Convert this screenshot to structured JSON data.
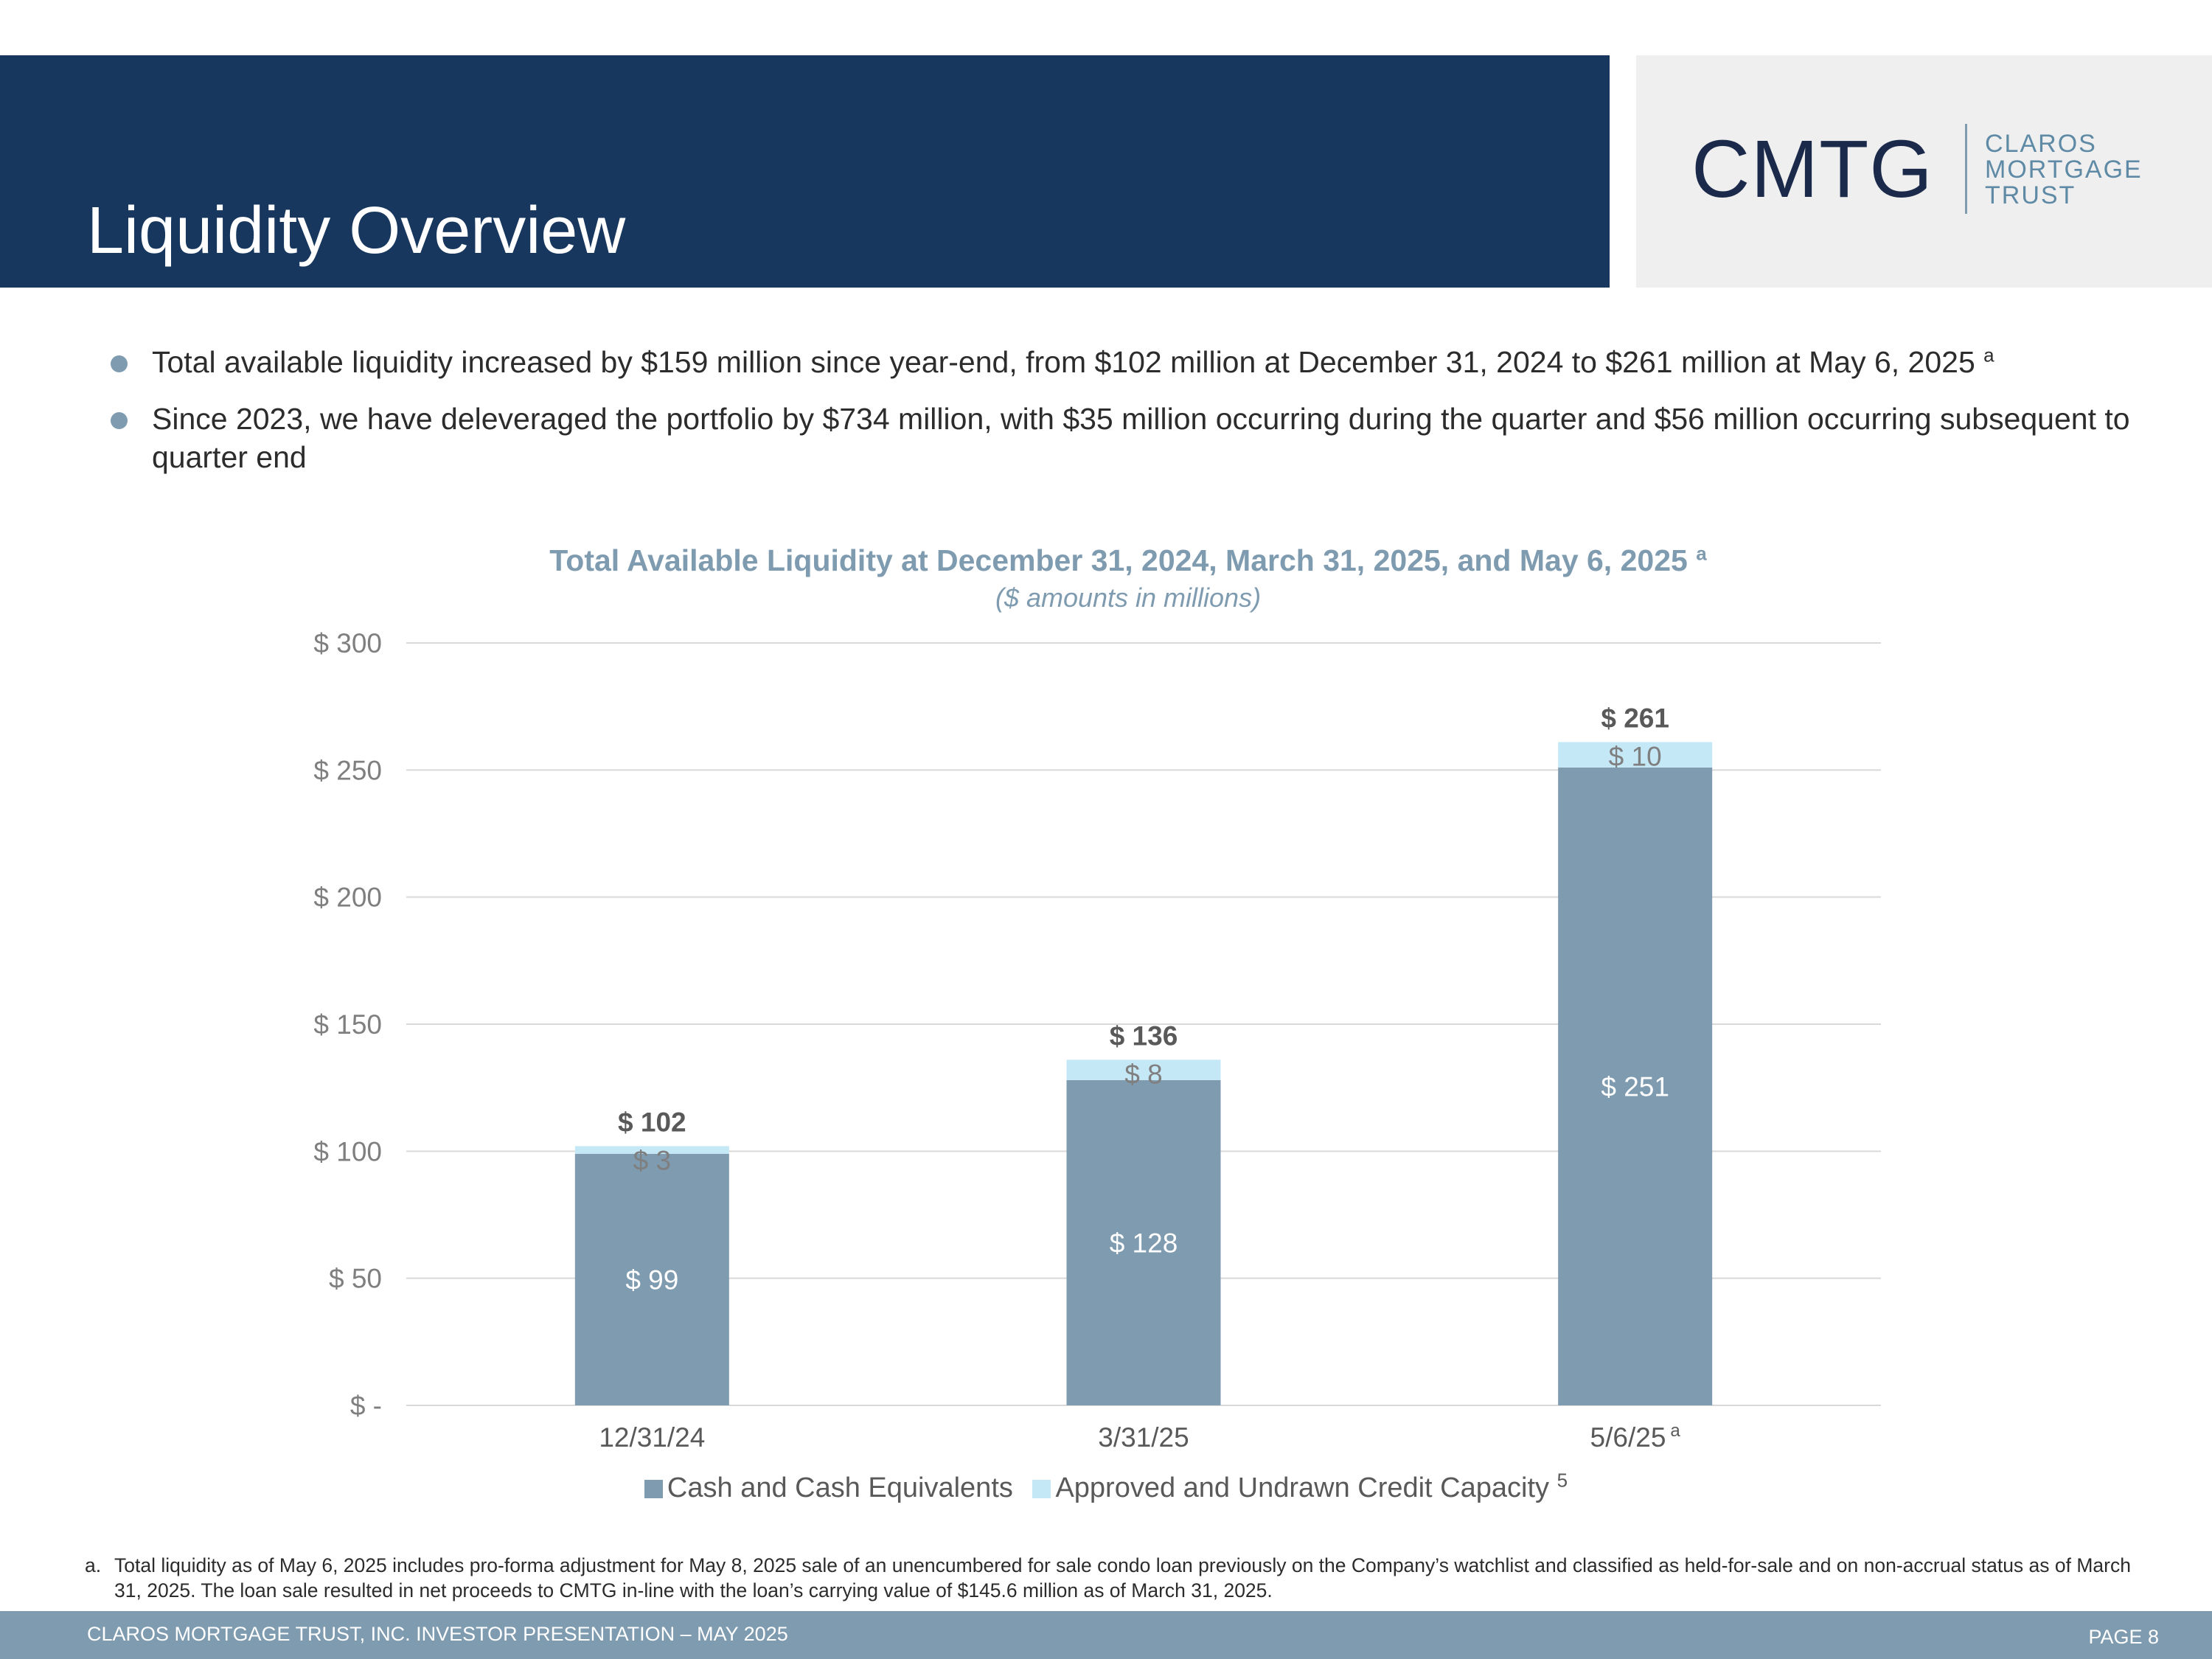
{
  "header": {
    "title": "Liquidity Overview"
  },
  "logo": {
    "mark": "CMTG",
    "line1": "CLAROS",
    "line2": "MORTGAGE",
    "line3": "TRUST"
  },
  "bullets": [
    {
      "text": "Total available liquidity increased by $159 million since year-end, from $102 million at December 31, 2024 to $261 million at May 6, 2025",
      "sup": "a"
    },
    {
      "text": "Since 2023, we have deleveraged the portfolio by $734 million, with $35 million occurring during the quarter and $56 million occurring subsequent to quarter end"
    }
  ],
  "colors": {
    "navy": "#17375e",
    "cash": "#7f9bb0",
    "credit": "#c5e8f7",
    "grid": "#d9d9d9",
    "axis_text": "#7f7f7f",
    "total_text": "#595959"
  },
  "chart_data": {
    "type": "bar",
    "stacked": true,
    "title": "Total Available Liquidity at December 31, 2024, March 31, 2025, and May 6, 2025",
    "title_sup": "a",
    "subtitle": "($ amounts in millions)",
    "categories": [
      "12/31/24",
      "3/31/25",
      "5/6/25"
    ],
    "category_sups": [
      "",
      "",
      "a"
    ],
    "series": [
      {
        "name": "Cash and Cash Equivalents",
        "values": [
          99,
          128,
          251
        ],
        "labels": [
          "$ 99",
          "$ 128",
          "$ 251"
        ]
      },
      {
        "name": "Approved and Undrawn Credit Capacity",
        "name_sup": "5",
        "values": [
          3,
          8,
          10
        ],
        "labels": [
          "$ 3",
          "$ 8",
          "$ 10"
        ]
      }
    ],
    "totals": [
      102,
      136,
      261
    ],
    "total_labels": [
      "$ 102",
      "$ 136",
      "$ 261"
    ],
    "ylim": [
      0,
      300
    ],
    "yticks": [
      0,
      50,
      100,
      150,
      200,
      250,
      300
    ],
    "ytick_labels": [
      "$ -",
      "$ 50",
      "$ 100",
      "$ 150",
      "$ 200",
      "$ 250",
      "$ 300"
    ],
    "grid": true,
    "legend": "bottom"
  },
  "footnote": {
    "marker": "a.",
    "text": "Total liquidity as of May 6, 2025 includes pro-forma adjustment for May 8, 2025 sale of an unencumbered for sale condo loan previously on the Company’s watchlist and classified as held-for-sale and on non-accrual status as of March 31, 2025. The loan sale resulted in net proceeds to CMTG in-line with the loan’s carrying value of $145.6 million as of March 31, 2025."
  },
  "footer": {
    "left": "CLAROS MORTGAGE TRUST, INC. INVESTOR PRESENTATION – MAY 2025",
    "right": "PAGE 8"
  }
}
